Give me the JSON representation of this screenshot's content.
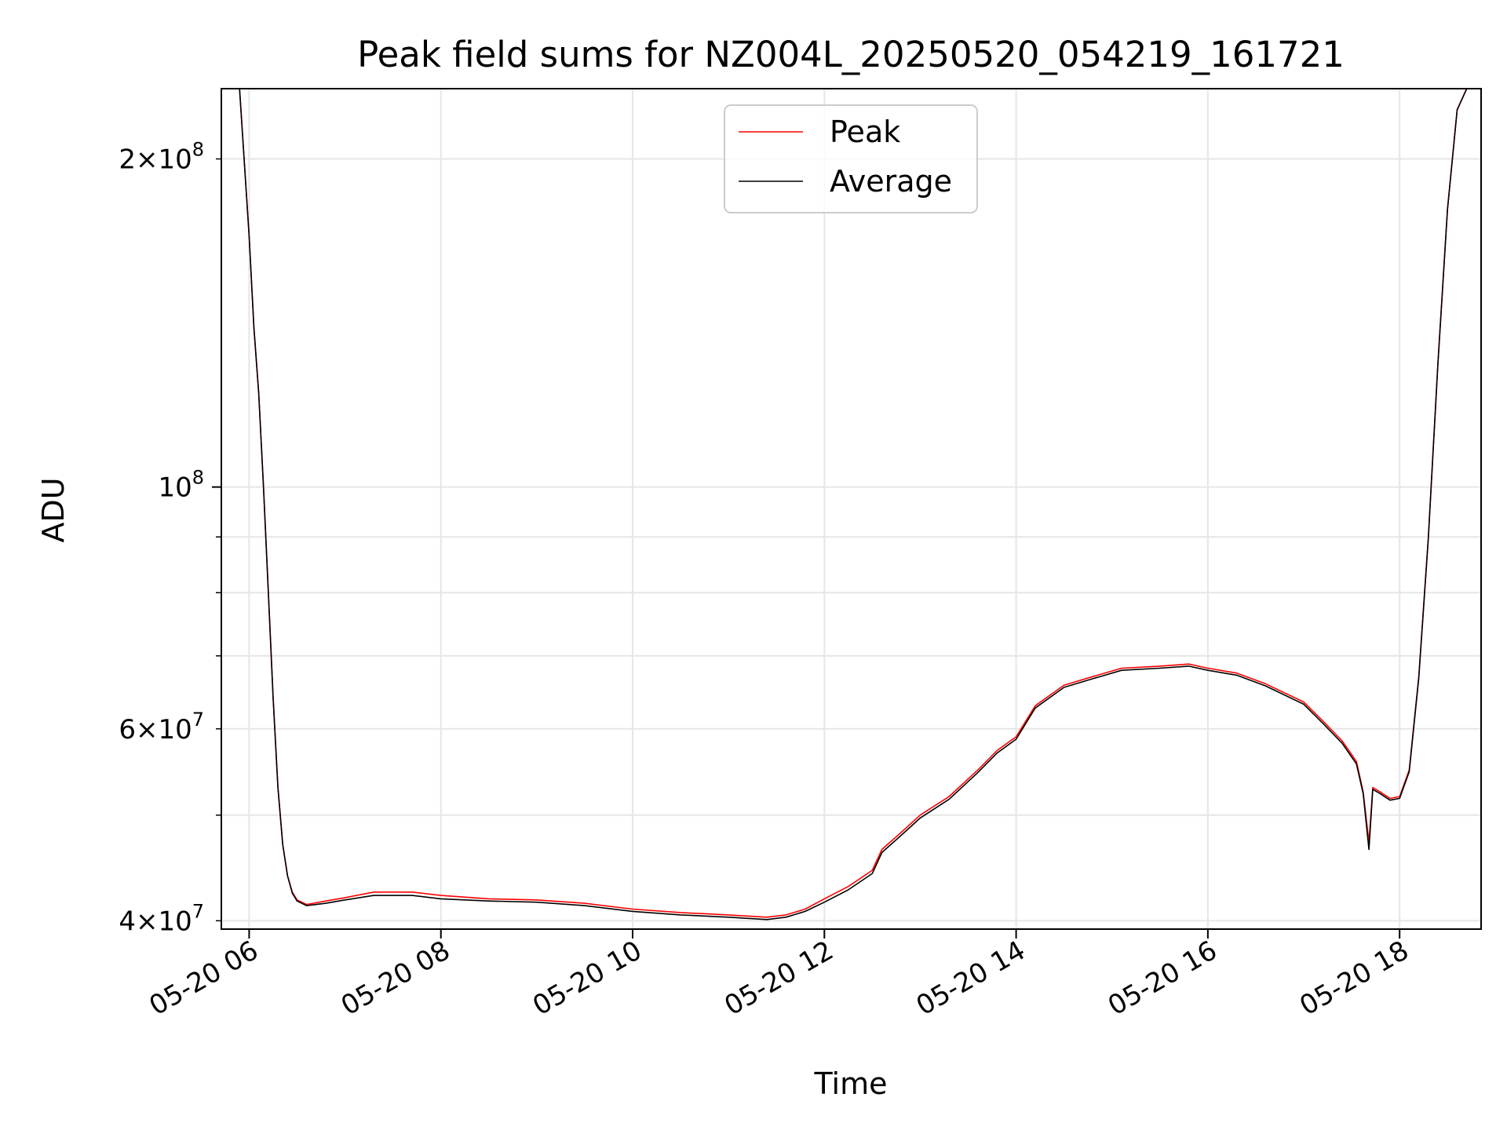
{
  "chart_data": {
    "type": "line",
    "title": "Peak field sums for NZ004L_20250520_054219_161721",
    "xlabel": "Time",
    "ylabel": "ADU",
    "yscale": "log",
    "ylim": [
      39300000,
      232000000
    ],
    "x_unit": "hours on 2025-05-20",
    "xlim": [
      5.71,
      18.85
    ],
    "grid": true,
    "legend_position": "top-center",
    "x_ticks": [
      {
        "value": 6,
        "label": "05-20 06"
      },
      {
        "value": 8,
        "label": "05-20 08"
      },
      {
        "value": 10,
        "label": "05-20 10"
      },
      {
        "value": 12,
        "label": "05-20 12"
      },
      {
        "value": 14,
        "label": "05-20 14"
      },
      {
        "value": 16,
        "label": "05-20 16"
      },
      {
        "value": 18,
        "label": "05-20 18"
      }
    ],
    "y_major_ticks": [
      {
        "value": 100000000,
        "base": "10",
        "exp": "8"
      }
    ],
    "y_minor_ticks": [
      {
        "value": 40000000,
        "mant": "4",
        "base": "10",
        "exp": "7"
      },
      {
        "value": 50000000,
        "mant": "",
        "base": "",
        "exp": ""
      },
      {
        "value": 60000000,
        "mant": "6",
        "base": "10",
        "exp": "7"
      },
      {
        "value": 70000000,
        "mant": "",
        "base": "",
        "exp": ""
      },
      {
        "value": 80000000,
        "mant": "",
        "base": "",
        "exp": ""
      },
      {
        "value": 90000000,
        "mant": "",
        "base": "",
        "exp": ""
      },
      {
        "value": 200000000,
        "mant": "2",
        "base": "10",
        "exp": "8"
      }
    ],
    "series": [
      {
        "name": "Peak",
        "color": "#ff0000",
        "x": [
          5.71,
          5.9,
          6.0,
          6.05,
          6.1,
          6.15,
          6.2,
          6.25,
          6.3,
          6.35,
          6.4,
          6.45,
          6.5,
          6.6,
          6.8,
          7.0,
          7.3,
          7.7,
          8.0,
          8.5,
          9.0,
          9.5,
          10.0,
          10.5,
          11.0,
          11.4,
          11.6,
          11.8,
          12.0,
          12.25,
          12.5,
          12.6,
          12.8,
          13.0,
          13.3,
          13.6,
          13.8,
          14.0,
          14.2,
          14.5,
          14.8,
          15.1,
          15.5,
          15.8,
          16.0,
          16.3,
          16.6,
          17.0,
          17.2,
          17.4,
          17.55,
          17.62,
          17.68,
          17.72,
          17.8,
          17.9,
          18.0,
          18.1,
          18.2,
          18.3,
          18.4,
          18.5,
          18.6,
          18.7,
          18.85
        ],
        "y": [
          232000000,
          232000000,
          170000000,
          140000000,
          122000000,
          100000000,
          80000000,
          64000000,
          53000000,
          47000000,
          44000000,
          42500000,
          41800000,
          41400000,
          41700000,
          42000000,
          42500000,
          42500000,
          42200000,
          41900000,
          41800000,
          41500000,
          41000000,
          40700000,
          40500000,
          40300000,
          40500000,
          41000000,
          41900000,
          43000000,
          44500000,
          46500000,
          48200000,
          50000000,
          52000000,
          55000000,
          57300000,
          59000000,
          63000000,
          65800000,
          67000000,
          68200000,
          68500000,
          68800000,
          68200000,
          67500000,
          66000000,
          63500000,
          61000000,
          58500000,
          56000000,
          52500000,
          47200000,
          53000000,
          52500000,
          51800000,
          52000000,
          55000000,
          67000000,
          90000000,
          130000000,
          180000000,
          222000000,
          232000000,
          232000000
        ]
      },
      {
        "name": "Average",
        "color": "#000000",
        "x": [
          5.71,
          5.9,
          6.0,
          6.05,
          6.1,
          6.15,
          6.2,
          6.25,
          6.3,
          6.35,
          6.4,
          6.45,
          6.5,
          6.6,
          6.8,
          7.0,
          7.3,
          7.7,
          8.0,
          8.5,
          9.0,
          9.5,
          10.0,
          10.5,
          11.0,
          11.4,
          11.6,
          11.8,
          12.0,
          12.25,
          12.5,
          12.6,
          12.8,
          13.0,
          13.3,
          13.6,
          13.8,
          14.0,
          14.2,
          14.5,
          14.8,
          15.1,
          15.5,
          15.8,
          16.0,
          16.3,
          16.6,
          17.0,
          17.2,
          17.4,
          17.55,
          17.62,
          17.68,
          17.72,
          17.8,
          17.9,
          18.0,
          18.1,
          18.2,
          18.3,
          18.4,
          18.5,
          18.6,
          18.7,
          18.85
        ],
        "y": [
          232000000,
          232000000,
          170000000,
          140000000,
          122000000,
          100000000,
          80000000,
          64000000,
          53000000,
          47000000,
          44000000,
          42400000,
          41700000,
          41300000,
          41500000,
          41800000,
          42200000,
          42200000,
          41900000,
          41700000,
          41600000,
          41300000,
          40800000,
          40500000,
          40300000,
          40100000,
          40300000,
          40800000,
          41600000,
          42700000,
          44200000,
          46200000,
          47900000,
          49700000,
          51700000,
          54700000,
          57000000,
          58700000,
          62700000,
          65500000,
          66700000,
          67900000,
          68200000,
          68500000,
          67900000,
          67200000,
          65700000,
          63200000,
          60700000,
          58200000,
          55700000,
          52300000,
          46500000,
          52800000,
          52300000,
          51600000,
          51800000,
          54800000,
          66800000,
          89800000,
          129800000,
          179800000,
          221800000,
          232000000,
          232000000
        ]
      }
    ]
  }
}
